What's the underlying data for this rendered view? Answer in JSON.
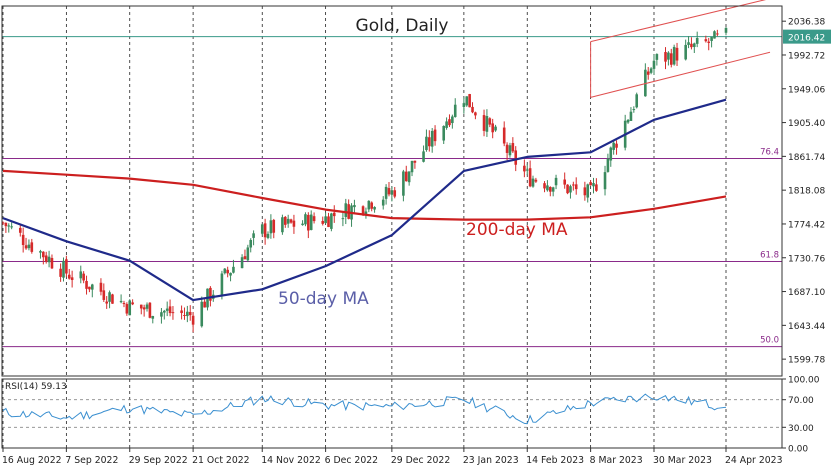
{
  "chart_data": {
    "type": "candlestick",
    "title": "Gold, Daily",
    "instrument": "Gold",
    "timeframe": "Daily",
    "x_dates": [
      "16 Aug 2022",
      "7 Sep 2022",
      "29 Sep 2022",
      "21 Oct 2022",
      "14 Nov 2022",
      "6 Dec 2022",
      "29 Dec 2022",
      "23 Jan 2023",
      "14 Feb 2023",
      "8 Mar 2023",
      "30 Mar 2023",
      "24 Apr 2023"
    ],
    "price_ticks": [
      "2036.38",
      "1992.72",
      "1949.06",
      "1905.40",
      "1861.74",
      "1818.08",
      "1774.42",
      "1730.76",
      "1687.10",
      "1643.44",
      "1599.78"
    ],
    "price_range": [
      1578,
      2056
    ],
    "current_price_label": "2016.42",
    "current_price": 2016.42,
    "fibonacci_levels": [
      {
        "label": "76.4",
        "price": 1859
      },
      {
        "label": "61.8",
        "price": 1726
      },
      {
        "label": "50.0",
        "price": 1616
      }
    ],
    "moving_averages": [
      {
        "name": "200-day MA",
        "label": "200-day MA",
        "color": "#cc1f1f",
        "x": [
          "16 Aug 2022",
          "7 Sep 2022",
          "29 Sep 2022",
          "21 Oct 2022",
          "14 Nov 2022",
          "6 Dec 2022",
          "29 Dec 2022",
          "23 Jan 2023",
          "14 Feb 2023",
          "8 Mar 2023",
          "30 Mar 2023",
          "24 Apr 2023"
        ],
        "y": [
          1843,
          1838,
          1833,
          1825,
          1808,
          1793,
          1782,
          1780,
          1780,
          1783,
          1794,
          1810
        ]
      },
      {
        "name": "50-day MA",
        "label": "50-day MA",
        "color": "#1f2a8a",
        "x": [
          "16 Aug 2022",
          "7 Sep 2022",
          "29 Sep 2022",
          "21 Oct 2022",
          "14 Nov 2022",
          "6 Dec 2022",
          "29 Dec 2022",
          "23 Jan 2023",
          "14 Feb 2023",
          "8 Mar 2023",
          "30 Mar 2023",
          "24 Apr 2023"
        ],
        "y": [
          1782,
          1752,
          1727,
          1676,
          1690,
          1720,
          1760,
          1843,
          1861,
          1867,
          1909,
          1935
        ]
      }
    ],
    "price_series": {
      "name": "Gold",
      "x": [
        "16 Aug 2022",
        "7 Sep 2022",
        "29 Sep 2022",
        "21 Oct 2022",
        "14 Nov 2022",
        "6 Dec 2022",
        "29 Dec 2022",
        "23 Jan 2023",
        "14 Feb 2023",
        "8 Mar 2023",
        "30 Mar 2023",
        "24 Apr 2023"
      ],
      "close": [
        1776,
        1712,
        1668,
        1656,
        1766,
        1782,
        1815,
        1940,
        1836,
        1812,
        1985,
        2016
      ],
      "up_color": "#3a8a5e",
      "down_color": "#d62a2a"
    },
    "trend_channel": {
      "color": "#e05050",
      "upper": [
        {
          "date": "8 Mar 2023",
          "price": 2010
        },
        {
          "date": "24 Apr 2023",
          "price": 2052
        }
      ],
      "lower": [
        {
          "date": "8 Mar 2023",
          "price": 1938
        },
        {
          "date": "24 Apr 2023",
          "price": 1982
        }
      ]
    },
    "rsi": {
      "label": "RSI(14) 59.13",
      "name": "RSI(14)",
      "value": 59.13,
      "ticks": [
        "100.00",
        "70.00",
        "30.00",
        "0.00"
      ],
      "range": [
        0,
        100
      ],
      "levels": [
        70,
        30
      ],
      "color": "#3a8fd0",
      "x": [
        "16 Aug 2022",
        "7 Sep 2022",
        "29 Sep 2022",
        "21 Oct 2022",
        "14 Nov 2022",
        "6 Dec 2022",
        "29 Dec 2022",
        "23 Jan 2023",
        "14 Feb 2023",
        "8 Mar 2023",
        "30 Mar 2023",
        "24 Apr 2023"
      ],
      "y": [
        52,
        44,
        58,
        47,
        72,
        62,
        60,
        70,
        40,
        65,
        76,
        59.13
      ]
    },
    "grid": true,
    "colors": {
      "fib_line": "#8a2a8a",
      "current_line": "#3a9a8a",
      "price_label_bg": "#3a9a8a",
      "grid": "#222222",
      "axis_text": "#222222"
    }
  }
}
